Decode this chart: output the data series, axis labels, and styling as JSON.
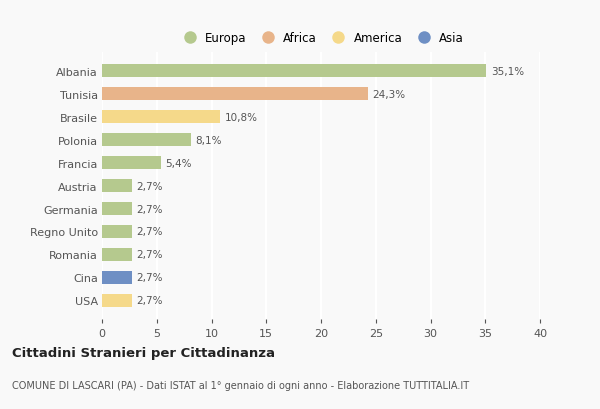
{
  "categories": [
    "Albania",
    "Tunisia",
    "Brasile",
    "Polonia",
    "Francia",
    "Austria",
    "Germania",
    "Regno Unito",
    "Romania",
    "Cina",
    "USA"
  ],
  "values": [
    35.1,
    24.3,
    10.8,
    8.1,
    5.4,
    2.7,
    2.7,
    2.7,
    2.7,
    2.7,
    2.7
  ],
  "labels": [
    "35,1%",
    "24,3%",
    "10,8%",
    "8,1%",
    "5,4%",
    "2,7%",
    "2,7%",
    "2,7%",
    "2,7%",
    "2,7%",
    "2,7%"
  ],
  "bar_colors": [
    "#b5c98e",
    "#e8b48a",
    "#f5d98a",
    "#b5c98e",
    "#b5c98e",
    "#b5c98e",
    "#b5c98e",
    "#b5c98e",
    "#b5c98e",
    "#6e8fc4",
    "#f5d98a"
  ],
  "legend_labels": [
    "Europa",
    "Africa",
    "America",
    "Asia"
  ],
  "legend_colors": [
    "#b5c98e",
    "#e8b48a",
    "#f5d98a",
    "#6e8fc4"
  ],
  "title": "Cittadini Stranieri per Cittadinanza",
  "subtitle": "COMUNE DI LASCARI (PA) - Dati ISTAT al 1° gennaio di ogni anno - Elaborazione TUTTITALIA.IT",
  "xlim": [
    0,
    40
  ],
  "xticks": [
    0,
    5,
    10,
    15,
    20,
    25,
    30,
    35,
    40
  ],
  "background_color": "#f9f9f9",
  "grid_color": "#e8e8e8",
  "bar_height": 0.55
}
